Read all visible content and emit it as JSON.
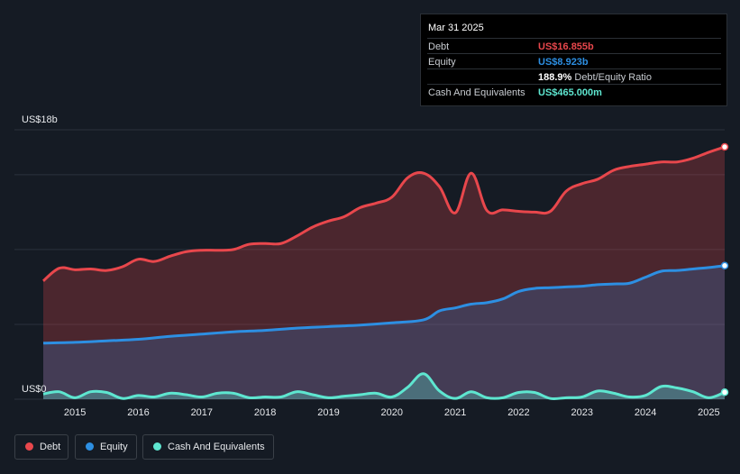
{
  "tooltip": {
    "date": "Mar 31 2025",
    "rows": [
      {
        "label": "Debt",
        "value": "US$16.855b",
        "color": "#e8474c"
      },
      {
        "label": "Equity",
        "value": "US$8.923b",
        "color": "#2d8fe2"
      },
      {
        "label": "",
        "value": "188.9%",
        "suffix": "Debt/Equity Ratio",
        "color": "#ffffff"
      },
      {
        "label": "Cash And Equivalents",
        "value": "US$465.000m",
        "color": "#5ee6d0"
      }
    ]
  },
  "legend": [
    {
      "label": "Debt",
      "color": "#e8474c"
    },
    {
      "label": "Equity",
      "color": "#2d8fe2"
    },
    {
      "label": "Cash And Equivalents",
      "color": "#5ee6d0"
    }
  ],
  "chart_data": {
    "type": "area",
    "title": "",
    "xlabel": "",
    "ylabel": "",
    "unit": "US$b",
    "y_top_label": "US$18b",
    "y_bottom_label": "US$0",
    "ylim": [
      0,
      18
    ],
    "xlim": [
      2014.5,
      2025.25
    ],
    "x_ticks": [
      2015,
      2016,
      2017,
      2018,
      2019,
      2020,
      2021,
      2022,
      2023,
      2024,
      2025
    ],
    "x_tick_labels": [
      "2015",
      "2016",
      "2017",
      "2018",
      "2019",
      "2020",
      "2021",
      "2022",
      "2023",
      "2024",
      "2025"
    ],
    "grid": true,
    "series": [
      {
        "name": "Debt",
        "color": "#e8474c",
        "x": [
          2014.5,
          2014.75,
          2015.0,
          2015.25,
          2015.5,
          2015.75,
          2016.0,
          2016.25,
          2016.5,
          2016.75,
          2017.0,
          2017.25,
          2017.5,
          2017.75,
          2018.0,
          2018.25,
          2018.5,
          2018.75,
          2019.0,
          2019.25,
          2019.5,
          2019.75,
          2020.0,
          2020.25,
          2020.5,
          2020.75,
          2021.0,
          2021.25,
          2021.5,
          2021.75,
          2022.0,
          2022.25,
          2022.5,
          2022.75,
          2023.0,
          2023.25,
          2023.5,
          2023.75,
          2024.0,
          2024.25,
          2024.5,
          2024.75,
          2025.0,
          2025.25
        ],
        "values": [
          7.9,
          8.75,
          8.65,
          8.7,
          8.6,
          8.85,
          9.35,
          9.2,
          9.55,
          9.85,
          9.95,
          9.95,
          10.0,
          10.35,
          10.4,
          10.4,
          10.9,
          11.5,
          11.9,
          12.2,
          12.8,
          13.1,
          13.5,
          14.8,
          15.1,
          14.2,
          12.45,
          15.1,
          12.6,
          12.65,
          12.55,
          12.5,
          12.55,
          13.9,
          14.4,
          14.7,
          15.3,
          15.55,
          15.7,
          15.85,
          15.85,
          16.1,
          16.5,
          16.855
        ]
      },
      {
        "name": "Equity",
        "color": "#2d8fe2",
        "x": [
          2014.5,
          2015.0,
          2015.5,
          2016.0,
          2016.5,
          2017.0,
          2017.5,
          2018.0,
          2018.5,
          2019.0,
          2019.5,
          2020.0,
          2020.5,
          2020.75,
          2021.0,
          2021.25,
          2021.5,
          2021.75,
          2022.0,
          2022.25,
          2022.5,
          2022.75,
          2023.0,
          2023.25,
          2023.5,
          2023.75,
          2024.0,
          2024.25,
          2024.5,
          2024.75,
          2025.0,
          2025.25
        ],
        "values": [
          3.75,
          3.8,
          3.9,
          4.0,
          4.2,
          4.35,
          4.5,
          4.6,
          4.75,
          4.85,
          4.95,
          5.1,
          5.3,
          5.9,
          6.1,
          6.35,
          6.45,
          6.7,
          7.2,
          7.4,
          7.45,
          7.5,
          7.55,
          7.65,
          7.7,
          7.75,
          8.15,
          8.55,
          8.6,
          8.7,
          8.8,
          8.923
        ]
      },
      {
        "name": "Cash And Equivalents",
        "color": "#5ee6d0",
        "x": [
          2014.5,
          2014.75,
          2015.0,
          2015.25,
          2015.5,
          2015.75,
          2016.0,
          2016.25,
          2016.5,
          2016.75,
          2017.0,
          2017.25,
          2017.5,
          2017.75,
          2018.0,
          2018.25,
          2018.5,
          2018.75,
          2019.0,
          2019.25,
          2019.5,
          2019.75,
          2020.0,
          2020.25,
          2020.5,
          2020.75,
          2021.0,
          2021.25,
          2021.5,
          2021.75,
          2022.0,
          2022.25,
          2022.5,
          2022.75,
          2023.0,
          2023.25,
          2023.5,
          2023.75,
          2024.0,
          2024.25,
          2024.5,
          2024.75,
          2025.0,
          2025.25
        ],
        "values": [
          0.35,
          0.5,
          0.1,
          0.5,
          0.45,
          0.05,
          0.25,
          0.15,
          0.4,
          0.3,
          0.15,
          0.4,
          0.4,
          0.1,
          0.15,
          0.15,
          0.5,
          0.3,
          0.1,
          0.2,
          0.3,
          0.4,
          0.15,
          0.8,
          1.7,
          0.55,
          0.05,
          0.5,
          0.1,
          0.1,
          0.45,
          0.45,
          0.05,
          0.1,
          0.15,
          0.55,
          0.4,
          0.15,
          0.25,
          0.85,
          0.75,
          0.5,
          0.1,
          0.465
        ]
      }
    ]
  }
}
